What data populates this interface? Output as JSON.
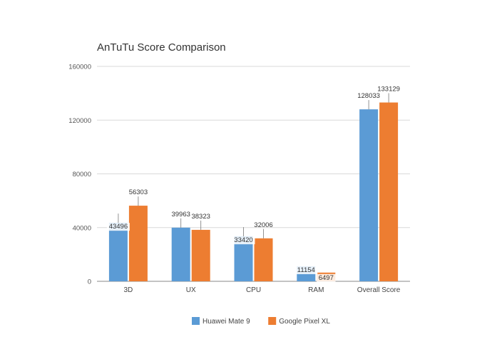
{
  "chart_data": {
    "type": "bar",
    "title": "AnTuTu Score Comparison",
    "categories": [
      "3D",
      "UX",
      "CPU",
      "RAM",
      "Overall Score"
    ],
    "series": [
      {
        "name": "Huawei Mate 9",
        "color": "#5b9bd5",
        "values": [
          43496,
          39963,
          33420,
          11154,
          128033
        ]
      },
      {
        "name": "Google Pixel XL",
        "color": "#ed7d31",
        "values": [
          56303,
          38323,
          32006,
          6497,
          133129
        ]
      }
    ],
    "ylim": [
      0,
      160000
    ],
    "yticks": [
      "0",
      "40000",
      "80000",
      "120000",
      "160000"
    ],
    "grid": true,
    "legend": "bottom"
  }
}
